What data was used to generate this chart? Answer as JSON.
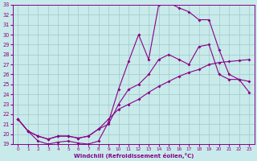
{
  "xlabel": "Windchill (Refroidissement éolien,°C)",
  "background_color": "#c8eaea",
  "line_color": "#880088",
  "grid_color": "#a0c8c8",
  "xlim": [
    -0.5,
    23.5
  ],
  "ylim": [
    19,
    33
  ],
  "xticks": [
    0,
    1,
    2,
    3,
    4,
    5,
    6,
    7,
    8,
    9,
    10,
    11,
    12,
    13,
    14,
    15,
    16,
    17,
    18,
    19,
    20,
    21,
    22,
    23
  ],
  "yticks": [
    19,
    20,
    21,
    22,
    23,
    24,
    25,
    26,
    27,
    28,
    29,
    30,
    31,
    32,
    33
  ],
  "line1_x": [
    0,
    1,
    2,
    3,
    4,
    5,
    6,
    7,
    8,
    9,
    10,
    11,
    12,
    13,
    14,
    15,
    16,
    17,
    18,
    19,
    20,
    21,
    22,
    23
  ],
  "line1_y": [
    21.5,
    20.3,
    19.3,
    19.0,
    19.2,
    19.3,
    19.1,
    19.0,
    19.3,
    21.2,
    24.5,
    27.3,
    30.0,
    27.5,
    33.0,
    33.2,
    32.7,
    32.3,
    31.5,
    31.5,
    28.5,
    26.0,
    25.5,
    24.2
  ],
  "line2_x": [
    0,
    1,
    2,
    3,
    4,
    5,
    6,
    7,
    8,
    9,
    10,
    11,
    12,
    13,
    14,
    15,
    16,
    17,
    18,
    19,
    20,
    21,
    22,
    23
  ],
  "line2_y": [
    21.5,
    20.3,
    19.8,
    19.5,
    19.8,
    19.8,
    19.6,
    19.8,
    20.5,
    21.0,
    23.0,
    24.5,
    25.0,
    26.0,
    27.5,
    28.0,
    27.5,
    27.0,
    28.8,
    29.0,
    26.0,
    25.5,
    25.5,
    25.3
  ],
  "line3_x": [
    0,
    1,
    2,
    3,
    4,
    5,
    6,
    7,
    8,
    9,
    10,
    11,
    12,
    13,
    14,
    15,
    16,
    17,
    18,
    19,
    20,
    21,
    22,
    23
  ],
  "line3_y": [
    21.5,
    20.3,
    19.8,
    19.5,
    19.8,
    19.8,
    19.6,
    19.8,
    20.5,
    21.5,
    22.5,
    23.0,
    23.5,
    24.2,
    24.8,
    25.3,
    25.8,
    26.2,
    26.5,
    27.0,
    27.2,
    27.3,
    27.4,
    27.5
  ]
}
